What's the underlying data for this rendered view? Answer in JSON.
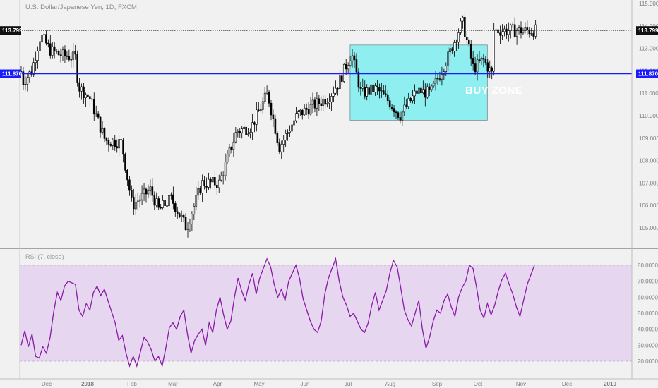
{
  "header": {
    "title": "U.S. Dollar/Japanese Yen, 1D, FXCM",
    "rsi_title": "RSI (7, close)"
  },
  "annotations": {
    "buy_zone": "BUY ZONE",
    "current_price_label": "113.799",
    "support_label": "111.870"
  },
  "colors": {
    "background": "#f1f1f1",
    "candles": "#000000",
    "support_line": "#1a1aff",
    "buy_zone_fill": "#8feef0",
    "rsi_line": "#8a1aa6",
    "rsi_band": "#e6d6f0"
  },
  "chart_data": [
    {
      "type": "candlestick",
      "title": "U.S. Dollar/Japanese Yen, 1D, FXCM",
      "x_labels": [
        "Dec",
        "2018",
        "Feb",
        "Mar",
        "Apr",
        "May",
        "Jun",
        "Jul",
        "Aug",
        "Sep",
        "Oct",
        "Nov",
        "Dec",
        "2019"
      ],
      "y_ticks": [
        "115.000",
        "114.000",
        "113.000",
        "112.000",
        "111.000",
        "110.000",
        "109.000",
        "108.000",
        "107.000",
        "106.000",
        "105.000"
      ],
      "ylim": [
        104.0,
        115.2
      ],
      "current_price": 113.799,
      "support_level": 111.87,
      "buy_zone": {
        "price_range": [
          109.8,
          113.15
        ],
        "date_range": [
          "Jul 18",
          "Oct 22"
        ]
      },
      "close_path": [
        {
          "x": "Nov 20",
          "y": 113.4
        },
        {
          "x": "Nov 27",
          "y": 111.5
        },
        {
          "x": "Dec 5",
          "y": 112.0
        },
        {
          "x": "Dec 12",
          "y": 113.6
        },
        {
          "x": "Dec 20",
          "y": 112.9
        },
        {
          "x": "Dec 28",
          "y": 112.7
        },
        {
          "x": "Jan 8",
          "y": 112.6
        },
        {
          "x": "Jan 10",
          "y": 111.3
        },
        {
          "x": "Jan 18",
          "y": 110.8
        },
        {
          "x": "Jan 29",
          "y": 108.9
        },
        {
          "x": "Feb 9",
          "y": 108.8
        },
        {
          "x": "Feb 16",
          "y": 106.0
        },
        {
          "x": "Feb 28",
          "y": 106.7
        },
        {
          "x": "Mar 6",
          "y": 105.8
        },
        {
          "x": "Mar 15",
          "y": 106.3
        },
        {
          "x": "Mar 26",
          "y": 105.0
        },
        {
          "x": "Apr 6",
          "y": 107.0
        },
        {
          "x": "Apr 18",
          "y": 107.0
        },
        {
          "x": "Apr 30",
          "y": 109.3
        },
        {
          "x": "May 10",
          "y": 109.5
        },
        {
          "x": "May 21",
          "y": 111.0
        },
        {
          "x": "May 29",
          "y": 108.6
        },
        {
          "x": "Jun 10",
          "y": 110.0
        },
        {
          "x": "Jun 20",
          "y": 110.4
        },
        {
          "x": "Jul 2",
          "y": 110.8
        },
        {
          "x": "Jul 10",
          "y": 111.5
        },
        {
          "x": "Jul 19",
          "y": 112.8
        },
        {
          "x": "Jul 26",
          "y": 111.0
        },
        {
          "x": "Aug 6",
          "y": 111.2
        },
        {
          "x": "Aug 15",
          "y": 110.6
        },
        {
          "x": "Aug 22",
          "y": 110.0
        },
        {
          "x": "Sep 3",
          "y": 111.1
        },
        {
          "x": "Sep 12",
          "y": 111.0
        },
        {
          "x": "Sep 24",
          "y": 112.6
        },
        {
          "x": "Oct 4",
          "y": 114.2
        },
        {
          "x": "Oct 12",
          "y": 112.1
        },
        {
          "x": "Oct 19",
          "y": 112.5
        },
        {
          "x": "Oct 26",
          "y": 111.8
        },
        {
          "x": "Nov 2",
          "y": 112.9
        },
        {
          "x": "Nov 9",
          "y": 113.8
        }
      ]
    },
    {
      "type": "line",
      "title": "RSI (7, close)",
      "y_ticks": [
        "80.0000",
        "70.0000",
        "60.0000",
        "50.0000",
        "40.0000",
        "30.0000",
        "20.0000"
      ],
      "ylim": [
        15,
        85
      ],
      "band": [
        20,
        80
      ],
      "series": [
        {
          "values": [
            30,
            39,
            29,
            37,
            23,
            22,
            29,
            25,
            35,
            51,
            63,
            58,
            67,
            70,
            69,
            68,
            52,
            48,
            56,
            52,
            63,
            67,
            61,
            65,
            58,
            51,
            44,
            33,
            36,
            25,
            17,
            23,
            17,
            26,
            35,
            32,
            27,
            20,
            23,
            17,
            28,
            41,
            44,
            40,
            48,
            52,
            37,
            25,
            33,
            37,
            40,
            30,
            44,
            38,
            52,
            60,
            49,
            40,
            45,
            60,
            72,
            64,
            58,
            68,
            75,
            62,
            72,
            78,
            84,
            79,
            68,
            60,
            65,
            58,
            70,
            75,
            80,
            72,
            59,
            52,
            45,
            40,
            38,
            45,
            62,
            72,
            78,
            84,
            70,
            60,
            55,
            48,
            50,
            45,
            40,
            38,
            44,
            55,
            63,
            52,
            58,
            64,
            75,
            83,
            79,
            66,
            52,
            46,
            42,
            50,
            58,
            40,
            28,
            35,
            45,
            52,
            50,
            58,
            62,
            54,
            48,
            60,
            66,
            70,
            80,
            78,
            66,
            52,
            47,
            56,
            49,
            55,
            64,
            71,
            75,
            68,
            62,
            54,
            48,
            58,
            68,
            74,
            80
          ]
        }
      ]
    }
  ]
}
